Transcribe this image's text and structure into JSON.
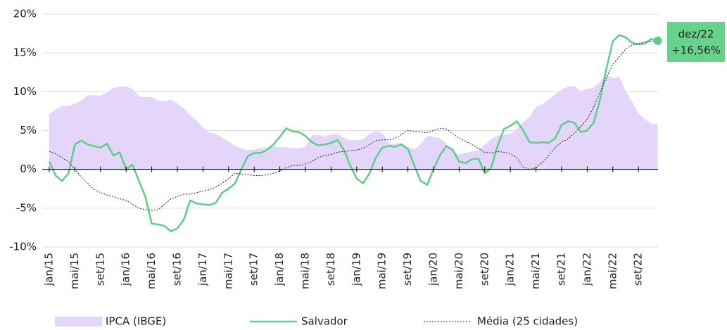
{
  "chart_data": {
    "type": "line",
    "categories": [
      "jan/15",
      null,
      null,
      null,
      "mai/15",
      null,
      null,
      null,
      "set/15",
      null,
      null,
      null,
      "jan/16",
      null,
      null,
      null,
      "mai/16",
      null,
      null,
      null,
      "set/16",
      null,
      null,
      null,
      "jan/17",
      null,
      null,
      null,
      "mai/17",
      null,
      null,
      null,
      "set/17",
      null,
      null,
      null,
      "jan/18",
      null,
      null,
      null,
      "mai/18",
      null,
      null,
      null,
      "set/18",
      null,
      null,
      null,
      "jan/19",
      null,
      null,
      null,
      "mai/19",
      null,
      null,
      null,
      "set/19",
      null,
      null,
      null,
      "jan/20",
      null,
      null,
      null,
      "mai/20",
      null,
      null,
      null,
      "set/20",
      null,
      null,
      null,
      "jan/21",
      null,
      null,
      null,
      "mai/21",
      null,
      null,
      null,
      "set/21",
      null,
      null,
      null,
      "jan/22",
      null,
      null,
      null,
      "mai/22",
      null,
      null,
      null,
      "set/22",
      null,
      null,
      null
    ],
    "series": [
      {
        "name": "IPCA (IBGE)",
        "kind": "area",
        "color": "#e4d6fb",
        "values": [
          7.14,
          7.7,
          8.13,
          8.17,
          8.47,
          8.89,
          9.56,
          9.53,
          9.49,
          9.93,
          10.48,
          10.67,
          10.71,
          10.36,
          9.39,
          9.28,
          9.32,
          8.84,
          8.74,
          8.97,
          8.48,
          7.87,
          6.99,
          6.29,
          5.35,
          4.76,
          4.57,
          4.08,
          3.6,
          3.0,
          2.71,
          2.46,
          2.54,
          2.7,
          2.8,
          2.95,
          2.86,
          2.84,
          2.68,
          2.76,
          2.86,
          4.39,
          4.48,
          4.19,
          4.53,
          4.56,
          4.05,
          3.75,
          3.78,
          3.89,
          4.58,
          4.94,
          4.66,
          3.37,
          3.22,
          3.43,
          2.89,
          2.54,
          3.27,
          4.31,
          4.19,
          4.01,
          3.3,
          2.4,
          1.88,
          2.13,
          2.31,
          2.44,
          3.14,
          3.92,
          4.31,
          4.52,
          4.56,
          5.2,
          6.1,
          6.76,
          8.06,
          8.35,
          8.99,
          9.68,
          10.25,
          10.67,
          10.74,
          10.06,
          10.38,
          10.54,
          11.3,
          12.13,
          11.73,
          11.89,
          10.07,
          8.73,
          7.17,
          6.47,
          5.9,
          5.79
        ]
      },
      {
        "name": "Salvador",
        "kind": "line",
        "color": "#5ccf86",
        "values": [
          1,
          -0.8,
          -1.5,
          -0.5,
          3.2,
          3.7,
          3.2,
          3,
          2.8,
          3.3,
          1.8,
          2.2,
          0,
          0.6,
          -1.5,
          -3.5,
          -7,
          -7.1,
          -7.3,
          -8,
          -7.6,
          -6.5,
          -4,
          -4.4,
          -4.5,
          -4.6,
          -4.3,
          -3,
          -2.5,
          -1.8,
          0,
          1.7,
          2.1,
          2.1,
          2.5,
          3.2,
          4.2,
          5.3,
          4.9,
          4.8,
          4.3,
          3.5,
          3.1,
          3.2,
          3.4,
          3.8,
          2.5,
          0.5,
          -1.2,
          -1.8,
          -0.5,
          1.5,
          2.8,
          3,
          2.9,
          3.2,
          2.6,
          0.5,
          -1.5,
          -2,
          0,
          1.8,
          3,
          2.5,
          1,
          0.8,
          1.3,
          1.4,
          -0.5,
          0.2,
          3,
          5.2,
          5.6,
          6.2,
          5,
          3.5,
          3.4,
          3.5,
          3.4,
          4,
          5.7,
          6.2,
          6,
          4.8,
          5,
          6,
          9,
          13,
          16.5,
          17.3,
          17,
          16.3,
          16.1,
          16.2,
          16.8,
          16.56
        ]
      },
      {
        "name": "Média (25 cidades)",
        "kind": "dotted",
        "color": "#222222",
        "values": [
          2.3,
          2,
          1.5,
          1,
          0,
          -1,
          -1.8,
          -2.6,
          -3,
          -3.3,
          -3.5,
          -3.8,
          -4,
          -4.5,
          -5,
          -5.2,
          -5.3,
          -5.2,
          -4.5,
          -3.8,
          -3.5,
          -3.2,
          -3.2,
          -3,
          -2.8,
          -2.6,
          -2.3,
          -1.8,
          -1.2,
          -0.5,
          -0.6,
          -0.7,
          -0.8,
          -0.8,
          -0.7,
          -0.5,
          -0.2,
          0.2,
          0.5,
          0.5,
          0.7,
          1,
          1.5,
          1.8,
          1.9,
          2.2,
          2.3,
          2.4,
          2.5,
          2.7,
          3.2,
          3.7,
          3.8,
          3.8,
          4,
          4.5,
          5,
          4.9,
          4.8,
          4.7,
          5,
          5.3,
          5.2,
          4.6,
          4,
          3.6,
          3.2,
          2.7,
          2.2,
          2.1,
          2.3,
          2.2,
          2,
          1.5,
          0.3,
          0,
          0.2,
          0.9,
          1.8,
          2.8,
          3.5,
          3.9,
          4.7,
          5.5,
          6.5,
          8,
          10,
          11.8,
          13.5,
          14.5,
          15.5,
          16,
          16.2,
          16.4,
          16.5,
          16.6
        ]
      }
    ],
    "ylim": [
      -10,
      20
    ],
    "yticks": [
      {
        "value": -10,
        "label": "-10%"
      },
      {
        "value": -5,
        "label": "-5%"
      },
      {
        "value": 0,
        "label": "0%"
      },
      {
        "value": 5,
        "label": "5%"
      },
      {
        "value": 10,
        "label": "10%"
      },
      {
        "value": 15,
        "label": "15%"
      },
      {
        "value": 20,
        "label": "20%"
      }
    ],
    "grid": true,
    "annotation": {
      "category_label": "dez/22",
      "value_label": "+16,56%"
    }
  }
}
